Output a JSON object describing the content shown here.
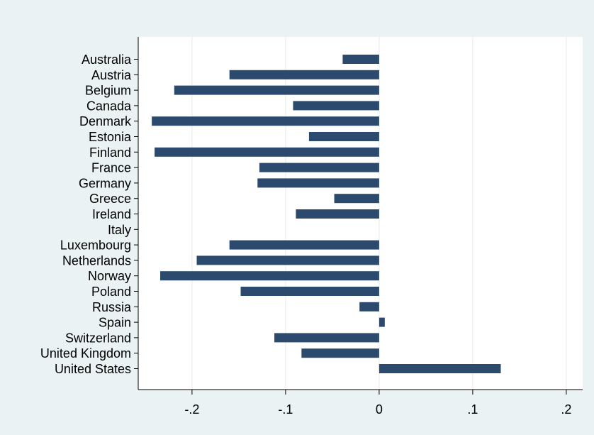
{
  "chart_data": {
    "type": "bar",
    "orientation": "horizontal",
    "categories": [
      "Australia",
      "Austria",
      "Belgium",
      "Canada",
      "Denmark",
      "Estonia",
      "Finland",
      "France",
      "Germany",
      "Greece",
      "Ireland",
      "Italy",
      "Luxembourg",
      "Netherlands",
      "Norway",
      "Poland",
      "Russia",
      "Spain",
      "Switzerland",
      "United Kingdom",
      "United States"
    ],
    "values": [
      -0.039,
      -0.16,
      -0.219,
      -0.092,
      -0.243,
      -0.075,
      -0.24,
      -0.128,
      -0.13,
      -0.048,
      -0.089,
      0.0,
      -0.16,
      -0.195,
      -0.234,
      -0.148,
      -0.021,
      0.006,
      -0.112,
      -0.083,
      0.13
    ],
    "xlim": [
      -0.2575,
      0.2175
    ],
    "xticks": [
      -0.2,
      -0.1,
      0,
      0.1,
      0.2
    ],
    "xtick_labels": [
      "-.2",
      "-.1",
      "0",
      ".1",
      ".2"
    ],
    "grid": "vertical",
    "title": "",
    "xlabel": "",
    "ylabel": "",
    "colors": {
      "bar": "#2b4a6d",
      "plot_background": "#ffffff",
      "page_background": "#eaf2f3",
      "grid": "#e9eef0",
      "axis": "#000000"
    }
  }
}
